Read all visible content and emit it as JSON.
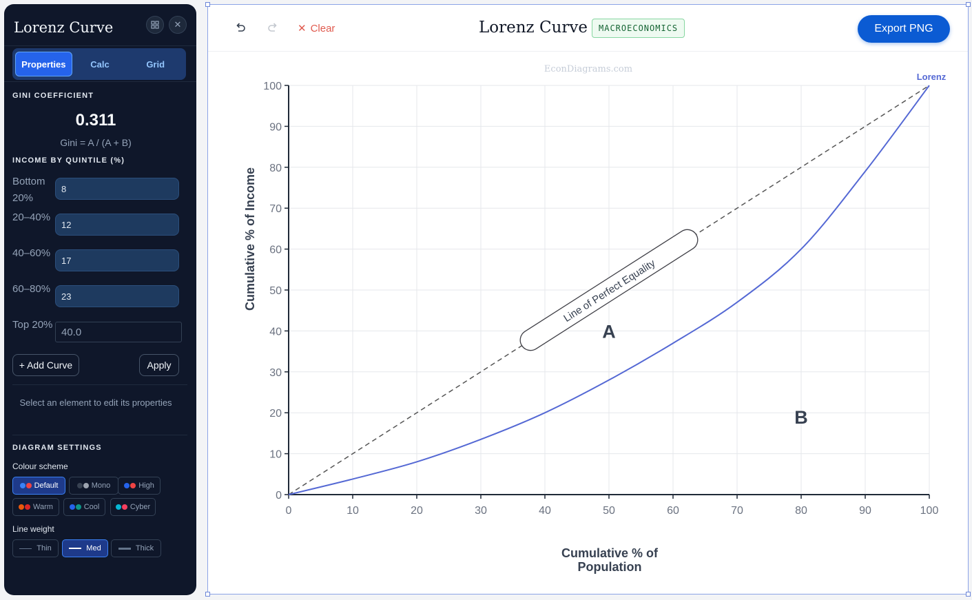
{
  "sidebar": {
    "title": "Lorenz Curve",
    "tabs": [
      {
        "label": "Properties",
        "active": true
      },
      {
        "label": "Calc",
        "active": false
      },
      {
        "label": "Grid",
        "active": false
      }
    ],
    "gini": {
      "heading": "GINI COEFFICIENT",
      "value": "0.311",
      "formula": "Gini = A / (A + B)"
    },
    "quintiles": {
      "heading": "INCOME BY QUINTILE (%)",
      "rows": [
        {
          "label": "Bottom 20%",
          "value": "8"
        },
        {
          "label": "20–40%",
          "value": "12"
        },
        {
          "label": "40–60%",
          "value": "17"
        },
        {
          "label": "60–80%",
          "value": "23"
        },
        {
          "label": "Top 20%",
          "value": "40.0"
        }
      ]
    },
    "add_curve_label": "+ Add Curve",
    "apply_label": "Apply",
    "hint": "Select an element to edit its properties",
    "settings": {
      "heading": "DIAGRAM SETTINGS",
      "colour_scheme_label": "Colour scheme",
      "schemes": [
        {
          "label": "Default",
          "active": true,
          "dots": [
            "#3b82f6",
            "#ef4444"
          ]
        },
        {
          "label": "Mono",
          "active": false,
          "dots": [
            "#374151",
            "#9ca3af"
          ]
        },
        {
          "label": "High",
          "active": false,
          "dots": [
            "#2563eb",
            "#ef4444"
          ]
        },
        {
          "label": "Warm",
          "active": false,
          "dots": [
            "#ea580c",
            "#dc2626"
          ]
        },
        {
          "label": "Cool",
          "active": false,
          "dots": [
            "#2563eb",
            "#0d9488"
          ]
        },
        {
          "label": "Cyber",
          "active": false,
          "dots": [
            "#06b6d4",
            "#f43f5e"
          ]
        }
      ],
      "line_weight_label": "Line weight",
      "weights": [
        {
          "label": "Thin",
          "active": false
        },
        {
          "label": "Med",
          "active": true
        },
        {
          "label": "Thick",
          "active": false
        }
      ]
    }
  },
  "toolbar": {
    "clear_label": "Clear",
    "title": "Lorenz Curve",
    "tag": "MACROECONOMICS",
    "export_label": "Export PNG"
  },
  "colors": {
    "accent": "#0b5bd3",
    "lorenz": "#5468d4",
    "equality": "#555555"
  },
  "chart_data": {
    "type": "line",
    "watermark": "EconDiagrams.com",
    "xlabel": "Cumulative % of Population",
    "ylabel": "Cumulative % of Income",
    "xlim": [
      0,
      100
    ],
    "ylim": [
      0,
      100
    ],
    "xticks": [
      0,
      10,
      20,
      30,
      40,
      50,
      60,
      70,
      80,
      90,
      100
    ],
    "yticks": [
      0,
      10,
      20,
      30,
      40,
      50,
      60,
      70,
      80,
      90,
      100
    ],
    "grid": true,
    "series": [
      {
        "name": "Lorenz",
        "style": "solid",
        "x": [
          0,
          10,
          20,
          30,
          40,
          50,
          60,
          70,
          80,
          90,
          100
        ],
        "y": [
          0,
          3.8,
          8,
          13.5,
          20,
          28,
          37,
          47,
          60,
          79,
          100
        ]
      },
      {
        "name": "",
        "style": "dashed",
        "x": [
          0,
          100
        ],
        "y": [
          0,
          100
        ]
      }
    ],
    "annotations": [
      {
        "text": "Line of Perfect Equality",
        "x": 50,
        "y": 50,
        "boxed": true
      },
      {
        "text": "A",
        "x": 50,
        "y": 40
      },
      {
        "text": "B",
        "x": 80,
        "y": 19
      }
    ]
  }
}
